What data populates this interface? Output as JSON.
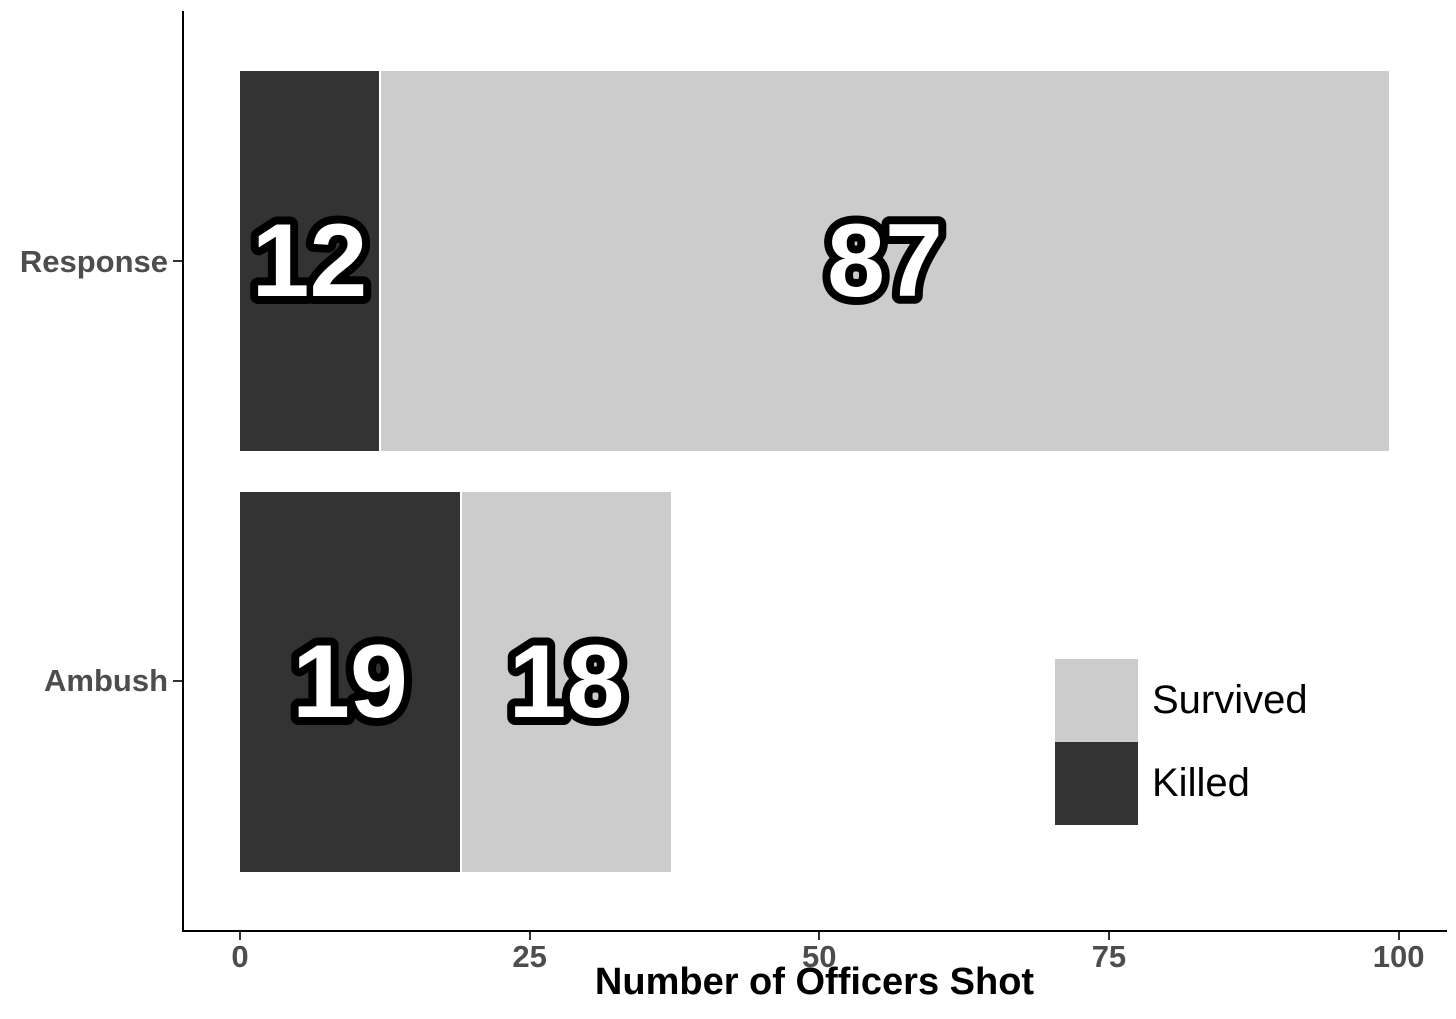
{
  "chart_data": {
    "type": "bar",
    "orientation": "horizontal",
    "stacked": true,
    "title": "",
    "xlabel": "Number of Officers Shot",
    "ylabel": "",
    "categories": [
      "Response",
      "Ambush"
    ],
    "series": [
      {
        "name": "Killed",
        "color": "#333333",
        "values": [
          12,
          19
        ]
      },
      {
        "name": "Survived",
        "color": "#cccccc",
        "values": [
          87,
          18
        ]
      }
    ],
    "bar_labels": [
      [
        "12",
        "87"
      ],
      [
        "19",
        "18"
      ]
    ],
    "xlim": [
      0,
      100
    ],
    "x_ticks": [
      "0",
      "25",
      "50",
      "75",
      "100"
    ],
    "x_tick_values": [
      0,
      25,
      50,
      75,
      100
    ],
    "grid": false,
    "legend": {
      "position": "right-middle",
      "entries": [
        {
          "label": "Survived",
          "color": "#cccccc"
        },
        {
          "label": "Killed",
          "color": "#333333"
        }
      ]
    },
    "colors": {
      "background": "#ffffff",
      "axis_line": "#000000",
      "tick_mark": "#333333",
      "tick_text": "#4d4d4d",
      "category_text": "#4d4d4d",
      "axis_title_text": "#000000",
      "bar_label_fill": "#ffffff",
      "bar_label_outline": "#000000"
    }
  }
}
